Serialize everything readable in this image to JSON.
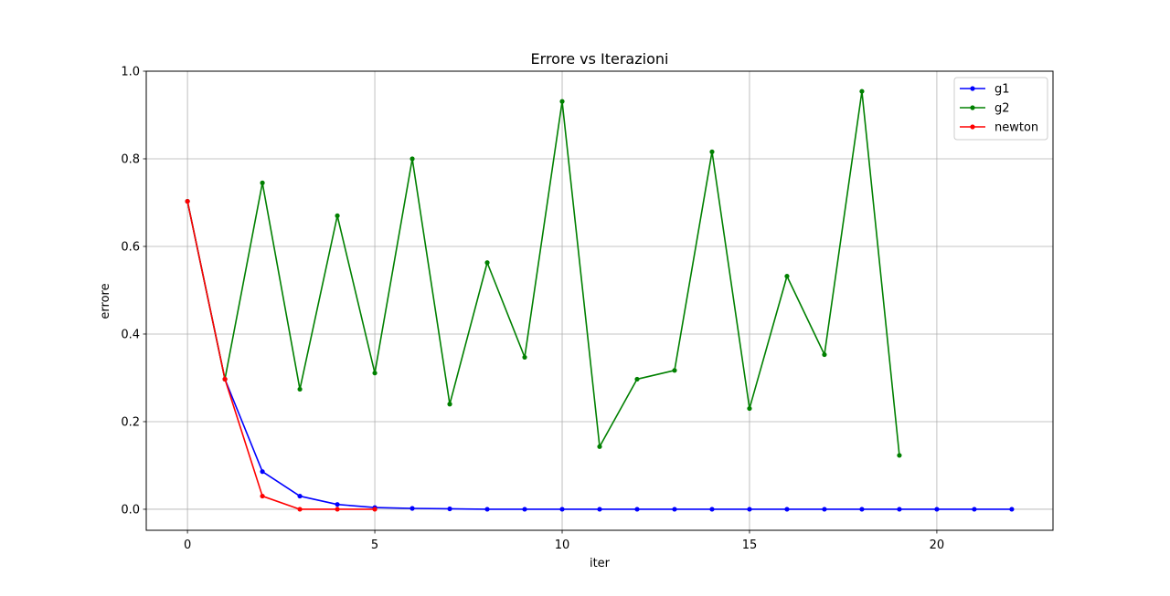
{
  "chart_data": {
    "type": "line",
    "title": "Errore vs Iterazioni",
    "xlabel": "iter",
    "ylabel": "errore",
    "xlim": [
      -1.1,
      23.1
    ],
    "ylim": [
      -0.048,
      1.0
    ],
    "xticks": [
      0,
      5,
      10,
      15,
      20
    ],
    "yticks": [
      0.0,
      0.2,
      0.4,
      0.6,
      0.8,
      1.0
    ],
    "xtick_labels": [
      "0",
      "5",
      "10",
      "15",
      "20"
    ],
    "ytick_labels": [
      "0.0",
      "0.2",
      "0.4",
      "0.6",
      "0.8",
      "1.0"
    ],
    "grid": true,
    "legend_position": "top-right",
    "series": [
      {
        "name": "g1",
        "color": "#0000ff",
        "x": [
          0,
          1,
          2,
          3,
          4,
          5,
          6,
          7,
          8,
          9,
          10,
          11,
          12,
          13,
          14,
          15,
          16,
          17,
          18,
          19,
          20,
          21,
          22
        ],
        "y": [
          0.703,
          0.297,
          0.086,
          0.03,
          0.011,
          0.004,
          0.002,
          0.001,
          0.0,
          0.0,
          0.0,
          0.0,
          0.0,
          0.0,
          0.0,
          0.0,
          0.0,
          0.0,
          0.0,
          0.0,
          0.0,
          0.0,
          0.0
        ]
      },
      {
        "name": "g2",
        "color": "#008000",
        "x": [
          0,
          1,
          2,
          3,
          4,
          5,
          6,
          7,
          8,
          9,
          10,
          11,
          12,
          13,
          14,
          15,
          16,
          17,
          18,
          19
        ],
        "y": [
          0.703,
          0.297,
          0.745,
          0.274,
          0.67,
          0.311,
          0.8,
          0.24,
          0.563,
          0.347,
          0.931,
          0.143,
          0.297,
          0.317,
          0.816,
          0.23,
          0.532,
          0.353,
          0.954,
          0.123
        ]
      },
      {
        "name": "newton",
        "color": "#ff0000",
        "x": [
          0,
          1,
          2,
          3,
          4,
          5
        ],
        "y": [
          0.703,
          0.297,
          0.03,
          0.0,
          0.0,
          0.0
        ]
      }
    ]
  }
}
